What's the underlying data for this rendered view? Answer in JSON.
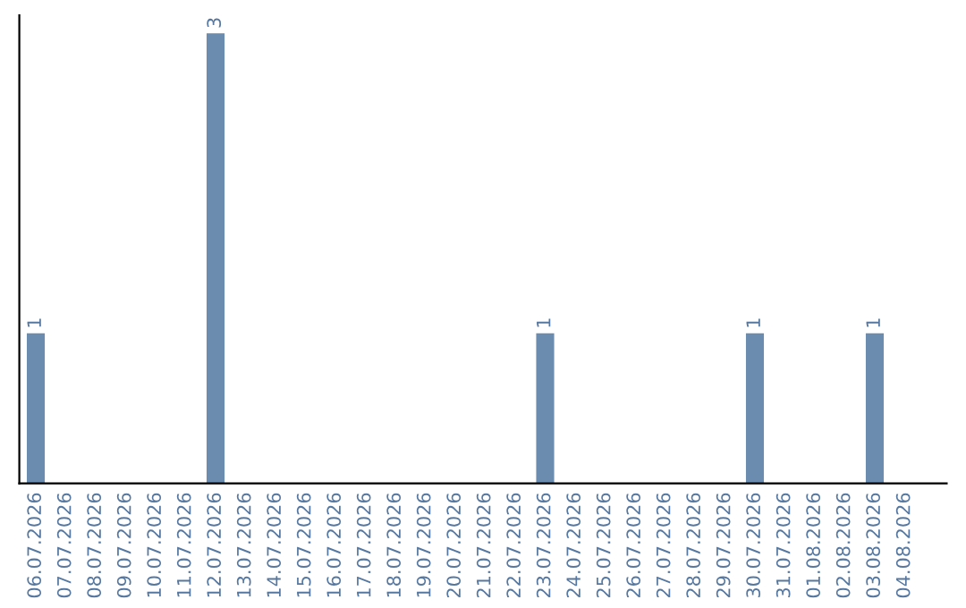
{
  "chart_data": {
    "type": "bar",
    "categories": [
      "06.07.2026",
      "07.07.2026",
      "08.07.2026",
      "09.07.2026",
      "10.07.2026",
      "11.07.2026",
      "12.07.2026",
      "13.07.2026",
      "14.07.2026",
      "15.07.2026",
      "16.07.2026",
      "17.07.2026",
      "18.07.2026",
      "19.07.2026",
      "20.07.2026",
      "21.07.2026",
      "22.07.2026",
      "23.07.2026",
      "24.07.2026",
      "25.07.2026",
      "26.07.2026",
      "27.07.2026",
      "28.07.2026",
      "29.07.2026",
      "30.07.2026",
      "31.07.2026",
      "01.08.2026",
      "02.08.2026",
      "03.08.2026",
      "04.08.2026"
    ],
    "values": [
      1,
      0,
      0,
      0,
      0,
      0,
      3,
      0,
      0,
      0,
      0,
      0,
      0,
      0,
      0,
      0,
      0,
      1,
      0,
      0,
      0,
      0,
      0,
      0,
      1,
      0,
      0,
      0,
      1,
      0
    ],
    "value_labels": [
      "1",
      null,
      null,
      null,
      null,
      null,
      "3",
      null,
      null,
      null,
      null,
      null,
      null,
      null,
      null,
      null,
      null,
      "1",
      null,
      null,
      null,
      null,
      null,
      null,
      "1",
      null,
      null,
      null,
      "1",
      null
    ],
    "color": "#6b8cae",
    "grid": false,
    "legend": false,
    "tick_labels": "x"
  }
}
